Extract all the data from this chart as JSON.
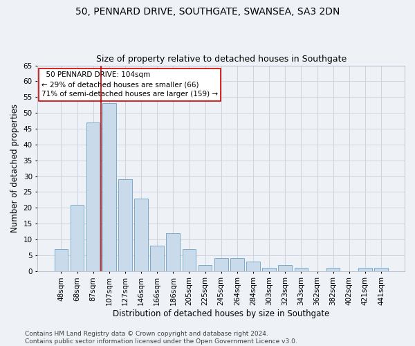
{
  "title": "50, PENNARD DRIVE, SOUTHGATE, SWANSEA, SA3 2DN",
  "subtitle": "Size of property relative to detached houses in Southgate",
  "xlabel": "Distribution of detached houses by size in Southgate",
  "ylabel": "Number of detached properties",
  "categories": [
    "48sqm",
    "68sqm",
    "87sqm",
    "107sqm",
    "127sqm",
    "146sqm",
    "166sqm",
    "186sqm",
    "205sqm",
    "225sqm",
    "245sqm",
    "264sqm",
    "284sqm",
    "303sqm",
    "323sqm",
    "343sqm",
    "362sqm",
    "382sqm",
    "402sqm",
    "421sqm",
    "441sqm"
  ],
  "values": [
    7,
    21,
    47,
    53,
    29,
    23,
    8,
    12,
    7,
    2,
    4,
    4,
    3,
    1,
    2,
    1,
    0,
    1,
    0,
    1,
    1
  ],
  "bar_color": "#c9daea",
  "bar_edgecolor": "#7aaac8",
  "grid_color": "#c8d0dc",
  "background_color": "#eef2f7",
  "vline_color": "#cc0000",
  "vline_x_index": 3,
  "annotation_text": "  50 PENNARD DRIVE: 104sqm\n← 29% of detached houses are smaller (66)\n71% of semi-detached houses are larger (159) →",
  "annotation_box_color": "#ffffff",
  "annotation_box_edgecolor": "#cc0000",
  "ylim": [
    0,
    65
  ],
  "yticks": [
    0,
    5,
    10,
    15,
    20,
    25,
    30,
    35,
    40,
    45,
    50,
    55,
    60,
    65
  ],
  "footer_text": "Contains HM Land Registry data © Crown copyright and database right 2024.\nContains public sector information licensed under the Open Government Licence v3.0.",
  "title_fontsize": 10,
  "subtitle_fontsize": 9,
  "xlabel_fontsize": 8.5,
  "ylabel_fontsize": 8.5,
  "tick_fontsize": 7.5,
  "annotation_fontsize": 7.5,
  "footer_fontsize": 6.5
}
